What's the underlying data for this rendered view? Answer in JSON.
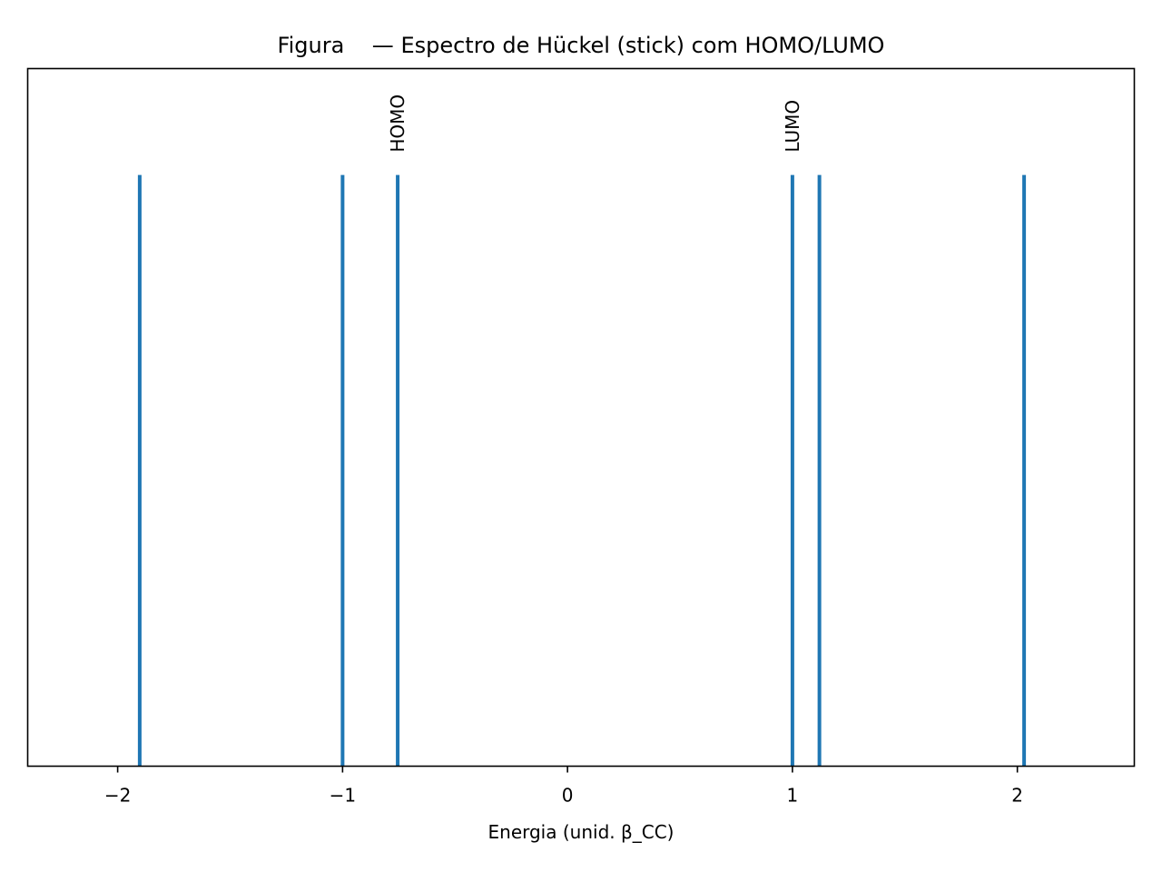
{
  "chart_data": {
    "type": "bar",
    "subtype": "stick-spectrum",
    "title": "Figura    — Espectro de Hückel (stick) com HOMO/LUMO",
    "xlabel": "Energia (unid. β_CC)",
    "ylabel": "",
    "xlim": [
      -2.4,
      2.52
    ],
    "ylim": [
      0,
      1.18
    ],
    "xticks": [
      {
        "value": -2,
        "label": "−2"
      },
      {
        "value": -1,
        "label": "−1"
      },
      {
        "value": 0,
        "label": "0"
      },
      {
        "value": 1,
        "label": "1"
      },
      {
        "value": 2,
        "label": "2"
      }
    ],
    "yticks_visible": false,
    "grid": false,
    "legend": "none",
    "series": [
      {
        "x": [
          -1.902,
          -1.0,
          -0.755,
          1.0,
          1.12,
          2.03
        ],
        "y": [
          1,
          1,
          1,
          1,
          1,
          1
        ],
        "color": "#1f77b4"
      }
    ],
    "annotations": [
      {
        "text": "HOMO",
        "x": -0.755,
        "rotation": 90
      },
      {
        "text": "LUMO",
        "x": 1.0,
        "rotation": 90
      }
    ]
  }
}
